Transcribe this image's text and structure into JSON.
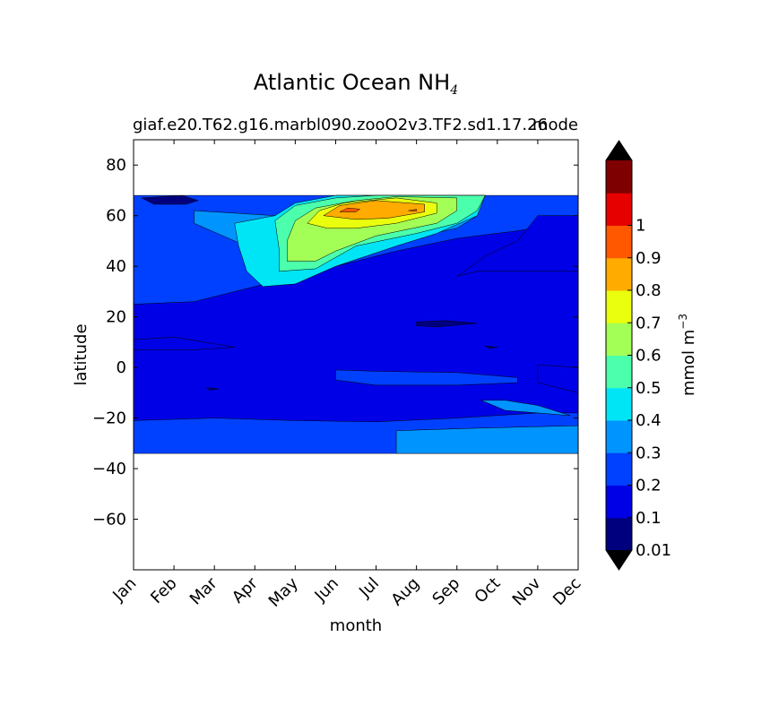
{
  "title": {
    "main": "Atlantic Ocean NH",
    "sub": "4"
  },
  "case_label": "giaf.e20.T62.g16.marbl090.zooO2v3.TF2.sd1.17.26",
  "left_label": "mode",
  "chart_data": {
    "type": "heatmap",
    "subtype": "filled-contour",
    "xlabel": "month",
    "ylabel": "latitude",
    "x_categories": [
      "Jan",
      "Feb",
      "Mar",
      "Apr",
      "May",
      "Jun",
      "Jul",
      "Aug",
      "Sep",
      "Oct",
      "Nov",
      "Dec"
    ],
    "xlim": [
      0,
      11
    ],
    "ylim": [
      -80,
      90
    ],
    "y_ticks": [
      80,
      60,
      40,
      20,
      0,
      -20,
      -40,
      -60
    ],
    "y_tick_labels": [
      "80",
      "60",
      "40",
      "20",
      "0",
      "−20",
      "−40",
      "−60"
    ],
    "data_lat_range": [
      -34,
      68
    ],
    "colorbar": {
      "label": "mmol m",
      "label_exp": "−3",
      "levels": [
        0.01,
        0.1,
        0.2,
        0.3,
        0.4,
        0.5,
        0.6,
        0.7,
        0.8,
        0.9,
        1.0,
        1.1
      ],
      "tick_labels": [
        "0.01",
        "0.1",
        "0.2",
        "0.3",
        "0.4",
        "0.5",
        "0.6",
        "0.7",
        "0.8",
        "0.9",
        "1"
      ],
      "extend": "both",
      "colors": [
        "#00007f",
        "#0000e6",
        "#0040ff",
        "#0094ff",
        "#00e5f5",
        "#4bffad",
        "#a3ff55",
        "#eaff0e",
        "#ffab00",
        "#ff5800",
        "#e60000",
        "#7f0000"
      ],
      "under_color": "#000000",
      "over_color": "#000000"
    },
    "regions": [
      {
        "level": 0.1,
        "note": "background",
        "points": [
          [
            0,
            -34
          ],
          [
            11,
            -34
          ],
          [
            11,
            68
          ],
          [
            0,
            68
          ]
        ]
      },
      {
        "level": 0.2,
        "points": [
          [
            0,
            68
          ],
          [
            11,
            68
          ],
          [
            11,
            58
          ],
          [
            9.5,
            54
          ],
          [
            8,
            51
          ],
          [
            6.5,
            46
          ],
          [
            4,
            36
          ],
          [
            3,
            32
          ],
          [
            1.5,
            26
          ],
          [
            0,
            25
          ]
        ]
      },
      {
        "level": 0.2,
        "points": [
          [
            0,
            -21
          ],
          [
            2,
            -20
          ],
          [
            4,
            -21
          ],
          [
            6,
            -21.5
          ],
          [
            8,
            -20
          ],
          [
            10,
            -18
          ],
          [
            11,
            -18
          ],
          [
            11,
            -34
          ],
          [
            0,
            -34
          ]
        ]
      },
      {
        "level": 0.2,
        "points": [
          [
            5,
            -1
          ],
          [
            6,
            -1.5
          ],
          [
            8,
            -2
          ],
          [
            9.5,
            -4
          ],
          [
            9.5,
            -6
          ],
          [
            8,
            -7
          ],
          [
            6,
            -7
          ],
          [
            5,
            -5
          ]
        ]
      },
      {
        "level": 0.3,
        "points": [
          [
            6.5,
            -25
          ],
          [
            8.5,
            -24
          ],
          [
            11,
            -23
          ],
          [
            11,
            -34
          ],
          [
            6.5,
            -34
          ]
        ]
      },
      {
        "level": 0.3,
        "points": [
          [
            8.6,
            -13
          ],
          [
            9.2,
            -17
          ],
          [
            10,
            -18
          ],
          [
            10.8,
            -19
          ],
          [
            10,
            -15
          ],
          [
            9.2,
            -13
          ]
        ]
      },
      {
        "level": 0.3,
        "points": [
          [
            1.5,
            62
          ],
          [
            3.5,
            60
          ],
          [
            4.5,
            62
          ],
          [
            5,
            68
          ],
          [
            8.7,
            68
          ],
          [
            8.5,
            60
          ],
          [
            8,
            55
          ],
          [
            6.5,
            50
          ],
          [
            4.5,
            40
          ],
          [
            3.5,
            36
          ],
          [
            3.5,
            44
          ],
          [
            2.5,
            50
          ],
          [
            1.5,
            57
          ]
        ]
      },
      {
        "level": 0.4,
        "points": [
          [
            2.5,
            57
          ],
          [
            3.5,
            60
          ],
          [
            4,
            65
          ],
          [
            5,
            68
          ],
          [
            8.7,
            68
          ],
          [
            8.5,
            60
          ],
          [
            7.5,
            53
          ],
          [
            6.5,
            48
          ],
          [
            5,
            40
          ],
          [
            4,
            33
          ],
          [
            3.2,
            32
          ],
          [
            2.8,
            38
          ],
          [
            2.6,
            48
          ]
        ]
      },
      {
        "level": 0.5,
        "points": [
          [
            3.5,
            58
          ],
          [
            4,
            64
          ],
          [
            5,
            67
          ],
          [
            6,
            68
          ],
          [
            8.7,
            68
          ],
          [
            8.5,
            62
          ],
          [
            8,
            57
          ],
          [
            7,
            53
          ],
          [
            5.5,
            48
          ],
          [
            4.5,
            39
          ],
          [
            3.6,
            38
          ],
          [
            3.6,
            47
          ]
        ]
      },
      {
        "level": 0.6,
        "points": [
          [
            3.8,
            50
          ],
          [
            4,
            58
          ],
          [
            4.5,
            63
          ],
          [
            5.5,
            66
          ],
          [
            6.5,
            67.5
          ],
          [
            8,
            67
          ],
          [
            8,
            62
          ],
          [
            7.5,
            57
          ],
          [
            6,
            52
          ],
          [
            5,
            46
          ],
          [
            4.5,
            42
          ],
          [
            3.8,
            42
          ]
        ]
      },
      {
        "level": 0.7,
        "points": [
          [
            4.3,
            57
          ],
          [
            4.6,
            62
          ],
          [
            5.2,
            65
          ],
          [
            6.5,
            67
          ],
          [
            7.5,
            65
          ],
          [
            7.5,
            61
          ],
          [
            6.5,
            57
          ],
          [
            5.5,
            55
          ],
          [
            4.8,
            55
          ]
        ]
      },
      {
        "level": 0.8,
        "points": [
          [
            4.7,
            60
          ],
          [
            5.1,
            64
          ],
          [
            6,
            66
          ],
          [
            7.2,
            64.5
          ],
          [
            7.2,
            61.5
          ],
          [
            6.3,
            59
          ],
          [
            5.5,
            58.5
          ]
        ]
      },
      {
        "level": 0.9,
        "points": [
          [
            5.1,
            61.5
          ],
          [
            5.3,
            63
          ],
          [
            5.6,
            62.6
          ],
          [
            5.5,
            61.5
          ]
        ]
      },
      {
        "level": 0.9,
        "points": [
          [
            6.8,
            62
          ],
          [
            7,
            62.5
          ],
          [
            7,
            61.8
          ]
        ]
      },
      {
        "level": 0.01,
        "points": [
          [
            0.2,
            67
          ],
          [
            1.2,
            68
          ],
          [
            1.6,
            66
          ],
          [
            1.3,
            64.5
          ],
          [
            0.5,
            64.5
          ]
        ]
      },
      {
        "level": 0.01,
        "points": [
          [
            7,
            18
          ],
          [
            7.7,
            18.5
          ],
          [
            8.5,
            17.5
          ],
          [
            7.5,
            16
          ],
          [
            7,
            16.5
          ]
        ]
      },
      {
        "level": 0.01,
        "points": [
          [
            8.7,
            8.5
          ],
          [
            9,
            8
          ],
          [
            8.8,
            7.5
          ]
        ]
      },
      {
        "level": 0.01,
        "points": [
          [
            1.8,
            -8
          ],
          [
            2.1,
            -8.5
          ],
          [
            1.9,
            -9
          ]
        ]
      },
      {
        "level": 0.1,
        "points": [
          [
            8,
            36
          ],
          [
            8.5,
            38
          ],
          [
            9.5,
            38
          ],
          [
            11,
            38
          ],
          [
            11,
            60
          ],
          [
            10,
            60
          ],
          [
            9.5,
            50
          ],
          [
            8.7,
            44
          ]
        ]
      },
      {
        "level": 0.1,
        "points": [
          [
            0,
            11
          ],
          [
            1,
            12
          ],
          [
            2.5,
            8
          ],
          [
            1.5,
            7
          ],
          [
            0,
            7
          ]
        ]
      },
      {
        "level": 0.1,
        "points": [
          [
            10,
            1
          ],
          [
            11,
            0
          ],
          [
            11,
            -10
          ],
          [
            10,
            -6
          ]
        ]
      }
    ]
  }
}
